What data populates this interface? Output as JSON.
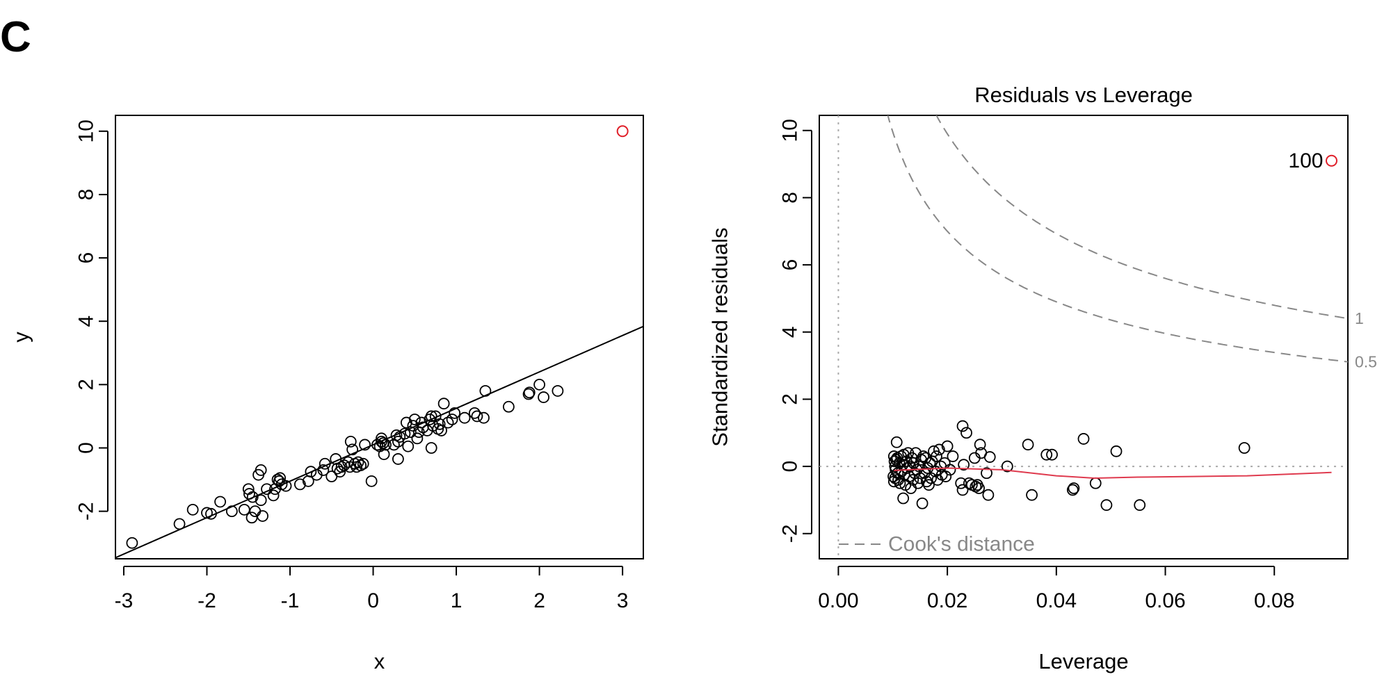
{
  "panel_label": "C",
  "colors": {
    "points": "#000000",
    "highlight": "#E0202A",
    "smooth": "#DF3A4E",
    "cooks": "#888888",
    "ref": "#AAAAAA"
  },
  "chart_data": [
    {
      "type": "scatter",
      "title": "",
      "xlabel": "x",
      "ylabel": "y",
      "xlim": [
        -3.1,
        3.25
      ],
      "ylim": [
        -3.5,
        10.5
      ],
      "x_ticks": [
        -3,
        -2,
        -1,
        0,
        1,
        2,
        3
      ],
      "x_tick_labels": [
        "-3",
        "-2",
        "-1",
        "0",
        "1",
        "2",
        "3"
      ],
      "y_ticks": [
        -2,
        0,
        2,
        4,
        6,
        8,
        10
      ],
      "y_tick_labels": [
        "-2",
        "0",
        "2",
        "4",
        "6",
        "8",
        "10"
      ],
      "fit_line": {
        "intercept": 0.1,
        "slope": 1.15
      },
      "outlier": {
        "x": 3.0,
        "y": 10.0
      },
      "points": [
        [
          -2.9,
          -3.0
        ],
        [
          -2.33,
          -2.4
        ],
        [
          -2.17,
          -1.95
        ],
        [
          -2.0,
          -2.05
        ],
        [
          -1.95,
          -2.08
        ],
        [
          -1.84,
          -1.7
        ],
        [
          -1.7,
          -2.0
        ],
        [
          -1.55,
          -1.95
        ],
        [
          -1.5,
          -1.3
        ],
        [
          -1.49,
          -1.45
        ],
        [
          -1.46,
          -2.2
        ],
        [
          -1.45,
          -1.55
        ],
        [
          -1.42,
          -2.0
        ],
        [
          -1.38,
          -0.85
        ],
        [
          -1.35,
          -0.7
        ],
        [
          -1.35,
          -1.65
        ],
        [
          -1.33,
          -2.15
        ],
        [
          -1.28,
          -1.3
        ],
        [
          -1.2,
          -1.5
        ],
        [
          -1.18,
          -1.3
        ],
        [
          -1.15,
          -1.0
        ],
        [
          -1.13,
          -1.05
        ],
        [
          -1.12,
          -0.95
        ],
        [
          -1.1,
          -1.15
        ],
        [
          -1.05,
          -1.2
        ],
        [
          -0.88,
          -1.15
        ],
        [
          -0.78,
          -1.05
        ],
        [
          -0.75,
          -0.75
        ],
        [
          -0.68,
          -0.85
        ],
        [
          -0.6,
          -0.7
        ],
        [
          -0.58,
          -0.5
        ],
        [
          -0.5,
          -0.9
        ],
        [
          -0.45,
          -0.35
        ],
        [
          -0.43,
          -0.65
        ],
        [
          -0.4,
          -0.75
        ],
        [
          -0.38,
          -0.6
        ],
        [
          -0.35,
          -0.55
        ],
        [
          -0.3,
          -0.45
        ],
        [
          -0.28,
          -0.6
        ],
        [
          -0.27,
          0.2
        ],
        [
          -0.25,
          -0.05
        ],
        [
          -0.22,
          -0.5
        ],
        [
          -0.2,
          -0.6
        ],
        [
          -0.18,
          -0.45
        ],
        [
          -0.15,
          -0.55
        ],
        [
          -0.12,
          -0.5
        ],
        [
          -0.1,
          0.1
        ],
        [
          -0.02,
          -1.05
        ],
        [
          0.05,
          0.1
        ],
        [
          0.08,
          0.05
        ],
        [
          0.1,
          0.3
        ],
        [
          0.1,
          0.2
        ],
        [
          0.12,
          0.15
        ],
        [
          0.13,
          -0.2
        ],
        [
          0.15,
          0.1
        ],
        [
          0.25,
          0.1
        ],
        [
          0.28,
          0.4
        ],
        [
          0.3,
          -0.35
        ],
        [
          0.3,
          0.2
        ],
        [
          0.32,
          0.35
        ],
        [
          0.38,
          0.45
        ],
        [
          0.4,
          0.8
        ],
        [
          0.42,
          0.05
        ],
        [
          0.45,
          0.5
        ],
        [
          0.48,
          0.7
        ],
        [
          0.5,
          0.9
        ],
        [
          0.53,
          0.3
        ],
        [
          0.55,
          0.5
        ],
        [
          0.58,
          0.8
        ],
        [
          0.6,
          0.65
        ],
        [
          0.65,
          0.55
        ],
        [
          0.68,
          0.9
        ],
        [
          0.7,
          1.0
        ],
        [
          0.7,
          0.0
        ],
        [
          0.72,
          0.7
        ],
        [
          0.75,
          1.0
        ],
        [
          0.78,
          0.6
        ],
        [
          0.8,
          0.75
        ],
        [
          0.82,
          0.55
        ],
        [
          0.85,
          1.4
        ],
        [
          0.9,
          0.8
        ],
        [
          0.95,
          0.9
        ],
        [
          0.98,
          1.1
        ],
        [
          1.1,
          0.95
        ],
        [
          1.22,
          1.1
        ],
        [
          1.25,
          1.0
        ],
        [
          1.33,
          0.95
        ],
        [
          1.35,
          1.8
        ],
        [
          1.63,
          1.3
        ],
        [
          1.87,
          1.7
        ],
        [
          1.88,
          1.75
        ],
        [
          2.0,
          2.0
        ],
        [
          2.05,
          1.6
        ],
        [
          2.22,
          1.8
        ]
      ]
    },
    {
      "type": "scatter",
      "title": "Residuals vs Leverage",
      "xlabel": "Leverage",
      "ylabel": "Standardized residuals",
      "xlim": [
        -0.0035,
        0.0935
      ],
      "ylim": [
        -2.75,
        10.45
      ],
      "x_ticks": [
        0.0,
        0.02,
        0.04,
        0.06,
        0.08
      ],
      "x_tick_labels": [
        "0.00",
        "0.02",
        "0.04",
        "0.06",
        "0.08"
      ],
      "y_ticks": [
        -2,
        0,
        2,
        4,
        6,
        8,
        10
      ],
      "y_tick_labels": [
        "-2",
        "0",
        "2",
        "4",
        "6",
        "8",
        "10"
      ],
      "cook_levels": [
        {
          "level": 0.5,
          "label": "0.5"
        },
        {
          "level": 1,
          "label": "1"
        }
      ],
      "legend_label": "Cook's distance",
      "outlier": {
        "x": 0.0905,
        "y": 9.1,
        "label": "100"
      },
      "smooth": [
        [
          0.0102,
          -0.12
        ],
        [
          0.02,
          -0.05
        ],
        [
          0.03,
          -0.1
        ],
        [
          0.04,
          -0.28
        ],
        [
          0.047,
          -0.35
        ],
        [
          0.055,
          -0.32
        ],
        [
          0.065,
          -0.3
        ],
        [
          0.075,
          -0.28
        ],
        [
          0.0905,
          -0.18
        ]
      ],
      "points": [
        [
          0.0102,
          0.3
        ],
        [
          0.0103,
          0.15
        ],
        [
          0.0104,
          0.0
        ],
        [
          0.0105,
          -0.1
        ],
        [
          0.0101,
          -0.3
        ],
        [
          0.0102,
          -0.45
        ],
        [
          0.0104,
          -0.35
        ],
        [
          0.0106,
          0.2
        ],
        [
          0.0107,
          0.72
        ],
        [
          0.0108,
          0.25
        ],
        [
          0.0109,
          -0.2
        ],
        [
          0.011,
          -0.4
        ],
        [
          0.0112,
          0.1
        ],
        [
          0.0113,
          -0.5
        ],
        [
          0.0115,
          0.3
        ],
        [
          0.0116,
          -0.15
        ],
        [
          0.0118,
          0.05
        ],
        [
          0.0119,
          -0.95
        ],
        [
          0.012,
          0.35
        ],
        [
          0.0121,
          -0.25
        ],
        [
          0.0123,
          -0.55
        ],
        [
          0.0125,
          0.15
        ],
        [
          0.0126,
          -0.05
        ],
        [
          0.0128,
          0.4
        ],
        [
          0.013,
          -0.3
        ],
        [
          0.0132,
          0.0
        ],
        [
          0.0133,
          -0.65
        ],
        [
          0.0135,
          0.25
        ],
        [
          0.0137,
          -0.4
        ],
        [
          0.0138,
          0.1
        ],
        [
          0.014,
          -0.2
        ],
        [
          0.0142,
          0.4
        ],
        [
          0.0144,
          -0.1
        ],
        [
          0.0146,
          -0.5
        ],
        [
          0.0148,
          0.0
        ],
        [
          0.015,
          -0.35
        ],
        [
          0.0152,
          0.2
        ],
        [
          0.0154,
          -1.1
        ],
        [
          0.0156,
          0.3
        ],
        [
          0.0158,
          -0.2
        ],
        [
          0.016,
          0.25
        ],
        [
          0.0162,
          -0.45
        ],
        [
          0.0164,
          -0.05
        ],
        [
          0.0166,
          -0.55
        ],
        [
          0.0168,
          0.1
        ],
        [
          0.017,
          -0.35
        ],
        [
          0.0172,
          0.15
        ],
        [
          0.0175,
          0.45
        ],
        [
          0.0178,
          -0.15
        ],
        [
          0.018,
          0.3
        ],
        [
          0.0182,
          -0.4
        ],
        [
          0.0185,
          0.5
        ],
        [
          0.0188,
          0.0
        ],
        [
          0.019,
          -0.25
        ],
        [
          0.0195,
          0.1
        ],
        [
          0.0197,
          -0.3
        ],
        [
          0.02,
          0.6
        ],
        [
          0.0205,
          -0.1
        ],
        [
          0.021,
          0.3
        ],
        [
          0.0228,
          1.2
        ],
        [
          0.0225,
          -0.5
        ],
        [
          0.0228,
          -0.7
        ],
        [
          0.023,
          0.05
        ],
        [
          0.0235,
          1.0
        ],
        [
          0.024,
          -0.5
        ],
        [
          0.0245,
          -0.55
        ],
        [
          0.025,
          0.25
        ],
        [
          0.0252,
          -0.6
        ],
        [
          0.0255,
          -0.55
        ],
        [
          0.0258,
          -0.65
        ],
        [
          0.026,
          0.65
        ],
        [
          0.0262,
          0.4
        ],
        [
          0.0272,
          -0.2
        ],
        [
          0.0275,
          -0.85
        ],
        [
          0.0278,
          0.28
        ],
        [
          0.031,
          0.0
        ],
        [
          0.0348,
          0.65
        ],
        [
          0.0355,
          -0.85
        ],
        [
          0.0382,
          0.35
        ],
        [
          0.0392,
          0.35
        ],
        [
          0.043,
          -0.7
        ],
        [
          0.0432,
          -0.65
        ],
        [
          0.045,
          0.82
        ],
        [
          0.0472,
          -0.5
        ],
        [
          0.0492,
          -1.15
        ],
        [
          0.051,
          0.45
        ],
        [
          0.0553,
          -1.15
        ],
        [
          0.0745,
          0.55
        ]
      ]
    }
  ]
}
